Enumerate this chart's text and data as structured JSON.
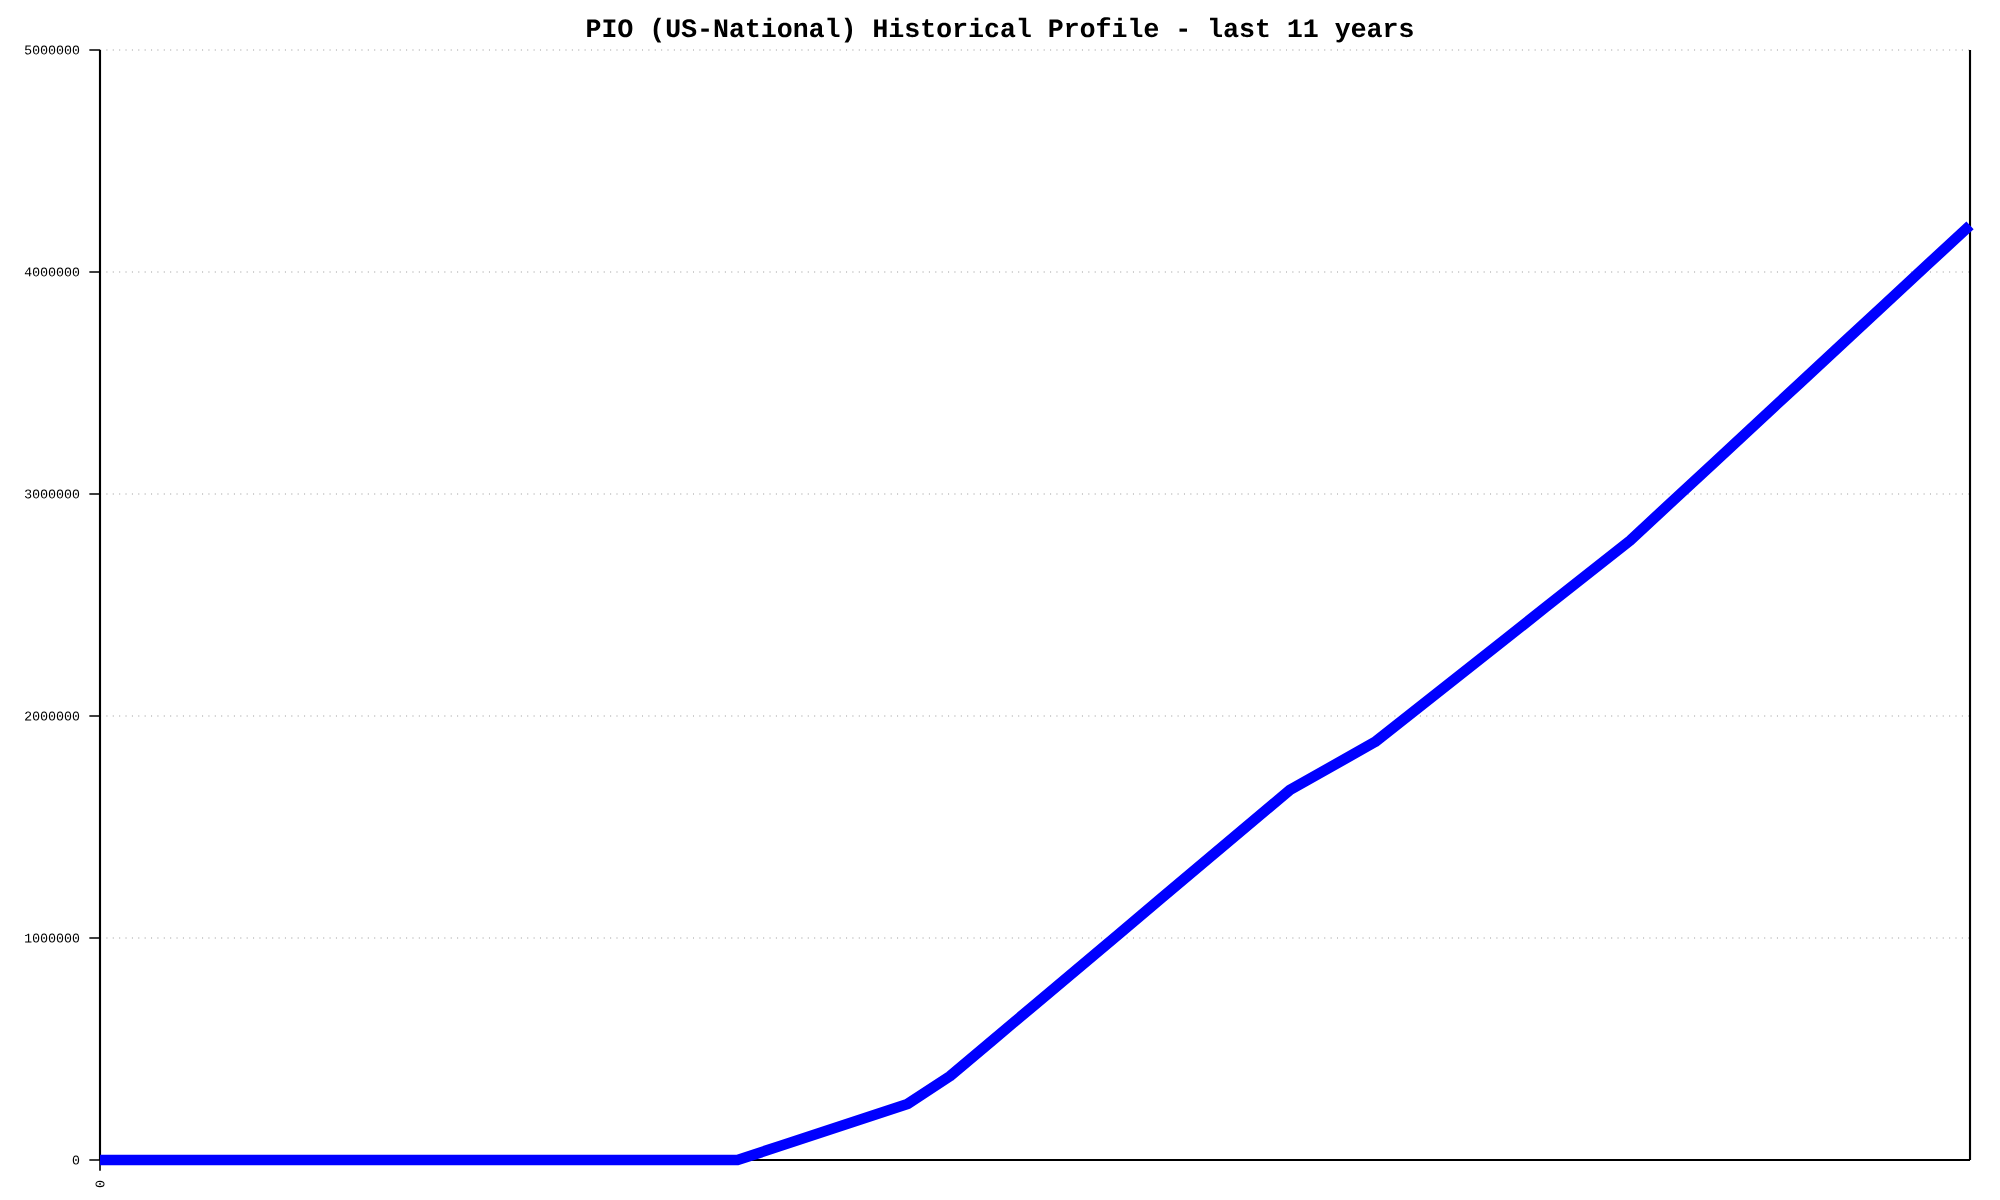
{
  "chart_data": {
    "type": "line",
    "title": "PIO (US-National) Historical Profile - last 11 years",
    "categories": [
      "0",
      null,
      null,
      null,
      null,
      null,
      null,
      null,
      null,
      null,
      null,
      null,
      null,
      null,
      null,
      null,
      null,
      null,
      null,
      null,
      null,
      null,
      null,
      null,
      null,
      null,
      null,
      null,
      null,
      null,
      null,
      null,
      null,
      null,
      null,
      null,
      null,
      null,
      null,
      null,
      null,
      null,
      null,
      null,
      null
    ],
    "series": [
      {
        "color": "#0000ff",
        "values": [
          0,
          0,
          0,
          0,
          0,
          0,
          0,
          0,
          0,
          0,
          0,
          0,
          0,
          0,
          0,
          0,
          63000,
          126000,
          189000,
          252000,
          378000,
          539000,
          700000,
          861000,
          1022000,
          1184000,
          1345000,
          1506000,
          1667000,
          1775000,
          1883000,
          2034000,
          2185000,
          2336000,
          2488000,
          2639000,
          2790000,
          2968000,
          3145000,
          3323000,
          3500000,
          3678000,
          3855000,
          4033000,
          4210000
        ]
      }
    ],
    "ylim": [
      0,
      5000000
    ],
    "yticks": [
      0,
      1000000,
      2000000,
      3000000,
      4000000,
      5000000
    ],
    "grid": "y",
    "line_style": "solid"
  }
}
